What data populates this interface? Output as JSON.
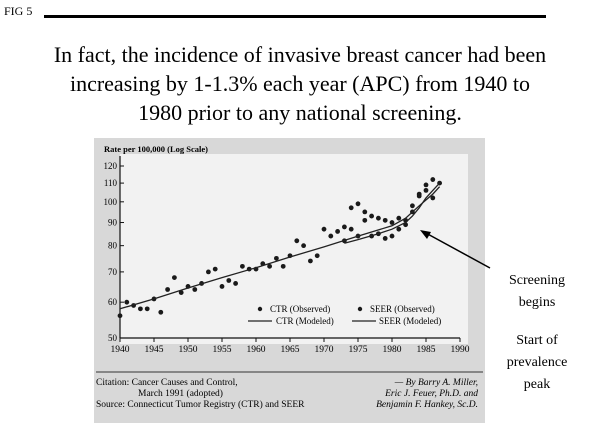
{
  "fig_label": "FIG 5",
  "headline": {
    "line1": "In fact, the incidence of invasive breast cancer had been",
    "line2": "increasing by 1-1.3% each year (APC) from 1940 to",
    "line3": "1980 prior to any national screening."
  },
  "chart_data": {
    "type": "scatter",
    "ylabel": "Rate per 100,000 (Log Scale)",
    "y_scale": "log",
    "ylim": [
      50,
      120
    ],
    "xlim": [
      1940,
      1990
    ],
    "x_ticks": [
      1940,
      1945,
      1950,
      1955,
      1960,
      1965,
      1970,
      1975,
      1980,
      1985,
      1990
    ],
    "y_ticks": [
      50,
      60,
      70,
      80,
      90,
      100,
      110,
      120
    ],
    "legend": {
      "ctr_observed": "CTR (Observed)",
      "ctr_modeled": "CTR (Modeled)",
      "seer_observed": "SEER (Observed)",
      "seer_modeled": "SEER (Modeled)"
    },
    "series": [
      {
        "name": "CTR (Observed)",
        "points": [
          [
            1940,
            56
          ],
          [
            1941,
            60
          ],
          [
            1942,
            59
          ],
          [
            1943,
            58
          ],
          [
            1944,
            58
          ],
          [
            1945,
            61
          ],
          [
            1946,
            57
          ],
          [
            1947,
            64
          ],
          [
            1948,
            68
          ],
          [
            1949,
            63
          ],
          [
            1950,
            65
          ],
          [
            1951,
            64
          ],
          [
            1952,
            66
          ],
          [
            1953,
            70
          ],
          [
            1954,
            71
          ],
          [
            1955,
            65
          ],
          [
            1956,
            67
          ],
          [
            1957,
            66
          ],
          [
            1958,
            72
          ],
          [
            1959,
            71
          ],
          [
            1960,
            71
          ],
          [
            1961,
            73
          ],
          [
            1962,
            72
          ],
          [
            1963,
            75
          ],
          [
            1964,
            72
          ],
          [
            1965,
            76
          ],
          [
            1966,
            82
          ],
          [
            1967,
            80
          ],
          [
            1968,
            74
          ],
          [
            1969,
            76
          ],
          [
            1970,
            87
          ],
          [
            1971,
            84
          ],
          [
            1972,
            86
          ],
          [
            1973,
            88
          ],
          [
            1974,
            87
          ],
          [
            1975,
            84
          ],
          [
            1976,
            91
          ],
          [
            1977,
            93
          ],
          [
            1978,
            92
          ],
          [
            1979,
            91
          ],
          [
            1980,
            90
          ],
          [
            1981,
            92
          ],
          [
            1982,
            89
          ],
          [
            1983,
            95
          ],
          [
            1984,
            103
          ],
          [
            1985,
            106
          ],
          [
            1986,
            102
          ],
          [
            1987,
            110
          ]
        ]
      },
      {
        "name": "SEER (Observed)",
        "points": [
          [
            1973,
            82
          ],
          [
            1974,
            97
          ],
          [
            1975,
            99
          ],
          [
            1976,
            95
          ],
          [
            1977,
            84
          ],
          [
            1978,
            85
          ],
          [
            1979,
            83
          ],
          [
            1980,
            84
          ],
          [
            1981,
            87
          ],
          [
            1982,
            91
          ],
          [
            1983,
            98
          ],
          [
            1984,
            104
          ],
          [
            1985,
            109
          ],
          [
            1986,
            112
          ]
        ]
      },
      {
        "name": "CTR (Modeled)",
        "points": [
          [
            1940,
            58
          ],
          [
            1945,
            61
          ],
          [
            1950,
            64.5
          ],
          [
            1955,
            68
          ],
          [
            1960,
            71.5
          ],
          [
            1965,
            75.5
          ],
          [
            1970,
            79.5
          ],
          [
            1975,
            84
          ],
          [
            1980,
            88.5
          ],
          [
            1982,
            92
          ],
          [
            1984,
            98
          ],
          [
            1986,
            104
          ],
          [
            1987,
            108
          ]
        ]
      },
      {
        "name": "SEER (Modeled)",
        "points": [
          [
            1973,
            81
          ],
          [
            1975,
            82.5
          ],
          [
            1978,
            85
          ],
          [
            1980,
            87
          ],
          [
            1982,
            90
          ],
          [
            1983,
            93
          ],
          [
            1984,
            97
          ],
          [
            1985,
            102
          ],
          [
            1986,
            106
          ],
          [
            1987,
            110
          ]
        ]
      }
    ]
  },
  "citation": {
    "line1": "Citation:  Cancer Causes and Control,",
    "line2": "March 1991 (adopted)",
    "line3": "Source:  Connecticut Tumor Registry (CTR) and SEER"
  },
  "authors": {
    "line1": "— By Barry A. Miller,",
    "line2": "Eric J. Feuer, Ph.D. and",
    "line3": "Benjamin F. Hankey, Sc.D."
  },
  "annotations": {
    "screening_line1": "Screening",
    "screening_line2": "begins",
    "prevalence_line1": "Start of",
    "prevalence_line2": "prevalence",
    "prevalence_line3": "peak"
  }
}
